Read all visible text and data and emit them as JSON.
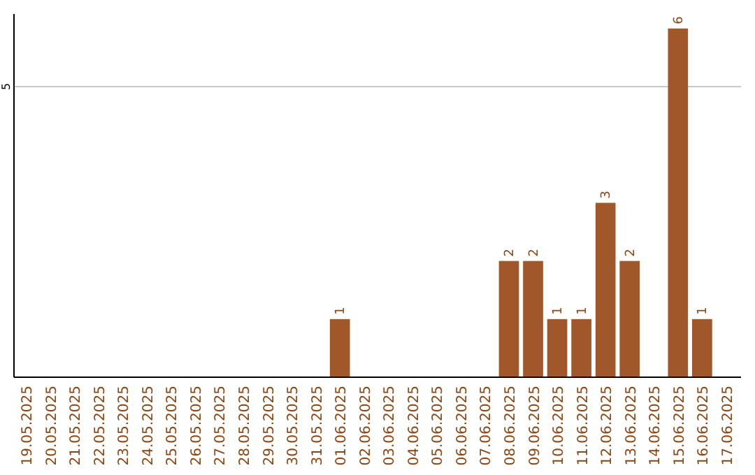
{
  "chart_data": {
    "type": "bar",
    "categories": [
      "19.05.2025",
      "20.05.2025",
      "21.05.2025",
      "22.05.2025",
      "23.05.2025",
      "24.05.2025",
      "25.05.2025",
      "26.05.2025",
      "27.05.2025",
      "28.05.2025",
      "29.05.2025",
      "30.05.2025",
      "31.05.2025",
      "01.06.2025",
      "02.06.2025",
      "03.06.2025",
      "04.06.2025",
      "05.06.2025",
      "06.06.2025",
      "07.06.2025",
      "08.06.2025",
      "09.06.2025",
      "10.06.2025",
      "11.06.2025",
      "12.06.2025",
      "13.06.2025",
      "14.06.2025",
      "15.06.2025",
      "16.06.2025",
      "17.06.2025"
    ],
    "values": [
      null,
      null,
      null,
      null,
      null,
      null,
      null,
      null,
      null,
      null,
      null,
      null,
      null,
      1,
      null,
      null,
      null,
      null,
      null,
      null,
      2,
      2,
      1,
      1,
      3,
      2,
      null,
      6,
      1,
      null
    ],
    "data_labels": true,
    "color": "#a0572a",
    "ylim": [
      0,
      6.25
    ],
    "ref_lines": [
      {
        "axis": "y",
        "value": 5,
        "label": "5",
        "color": "#c8c8c8"
      }
    ]
  }
}
